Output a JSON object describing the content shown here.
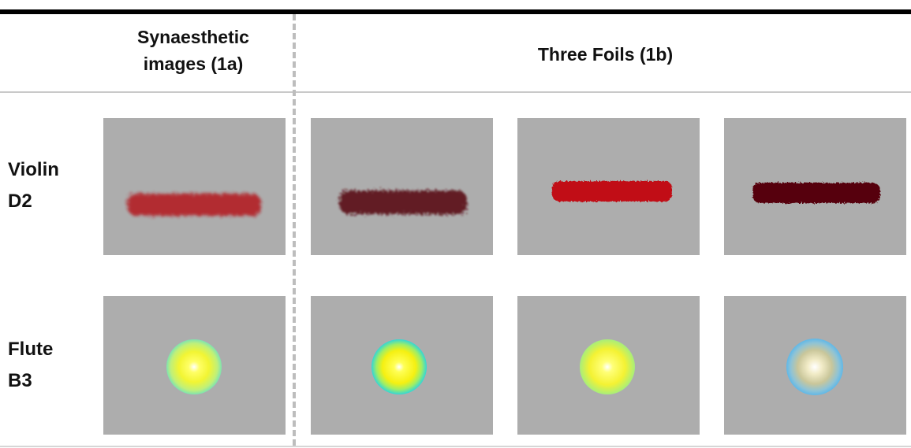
{
  "header": {
    "col_synaesthetic": "Synaesthetic\nimages (1a)",
    "col_foils": "Three Foils (1b)"
  },
  "rows": [
    {
      "label_line1": "Violin",
      "label_line2": "D2"
    },
    {
      "label_line1": "Flute",
      "label_line2": "B3"
    }
  ],
  "colors": {
    "panel_bg": "#adadad",
    "violin_1a": "#b3161c",
    "violin_foil1": "#5a1013",
    "violin_foil2": "#c10f12",
    "violin_foil3": "#560607",
    "flute_core": "#ffff33",
    "flute_ring_1a": "#7fe3b0",
    "flute_ring_foil1": "#33d6d6",
    "flute_ring_foil2": "#a8ee7a",
    "flute_ring_foil3": "#5fb8e8"
  }
}
